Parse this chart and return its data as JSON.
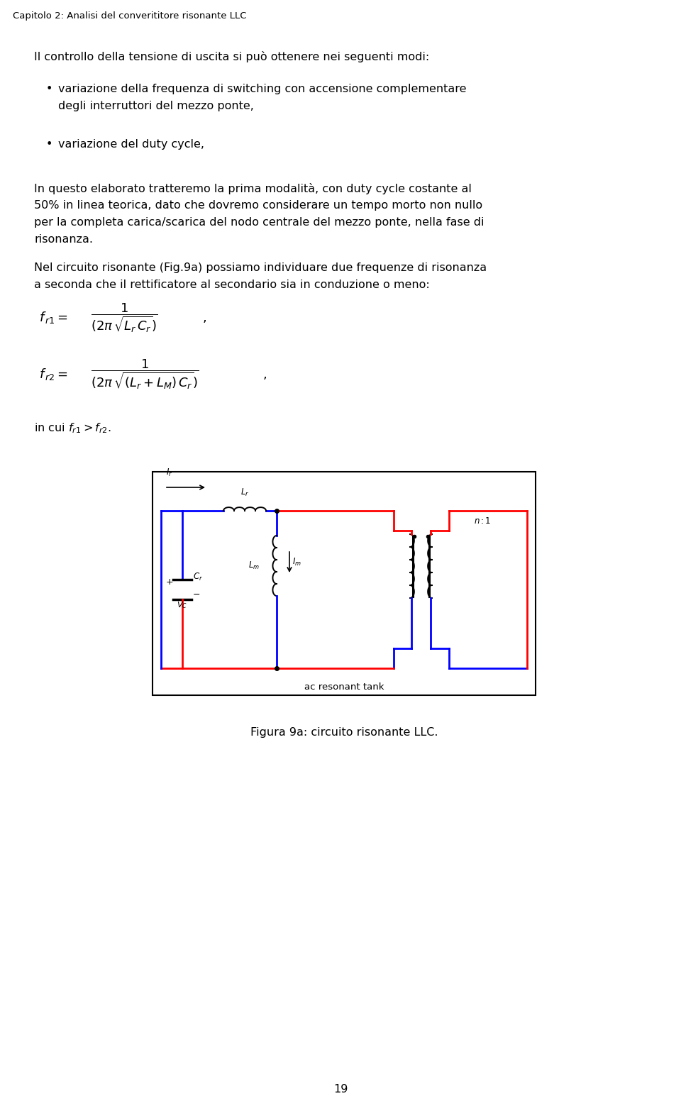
{
  "title": "Capitolo 2: Analisi del converititore risonante LLC",
  "para1": "Il controllo della tensione di uscita si può ottenere nei seguenti modi:",
  "b1_line1": "variazione della frequenza di switching con accensione complementare",
  "b1_line2": "degli interruttori del mezzo ponte,",
  "bullet2": "variazione del duty cycle,",
  "p2_l1": "In questo elaborato tratteremo la prima modalità, con duty cycle costante al",
  "p2_l2": "50% in linea teorica, dato che dovremo considerare un tempo morto non nullo",
  "p2_l3": "per la completa carica/scarica del nodo centrale del mezzo ponte, nella fase di",
  "p2_l4": "risonanza.",
  "p3_l1": "Nel circuito risonante (Fig.9a) possiamo individuare due frequenze di risonanza",
  "p3_l2": "a seconda che il rettificatore al secondario sia in conduzione o meno:",
  "fig_caption": "Figura 9a: circuito risonante LLC.",
  "page_num": "19",
  "bg_color": "#ffffff",
  "text_color": "#000000",
  "body_fs": 11.5,
  "title_fs": 9.5,
  "formula_fs": 13,
  "small_fs": 9.0,
  "caption_fs": 11.5
}
